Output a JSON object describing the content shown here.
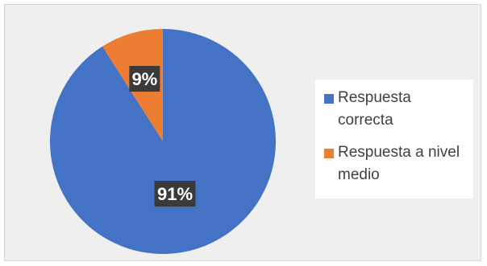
{
  "chart_data": {
    "type": "pie",
    "categories": [
      "Respuesta correcta",
      "Respuesta a nivel medio"
    ],
    "values": [
      91,
      9
    ],
    "data_labels": [
      "91%",
      "9%"
    ],
    "colors": [
      "#4472c4",
      "#ed7d31"
    ],
    "legend_position": "right",
    "title": ""
  }
}
